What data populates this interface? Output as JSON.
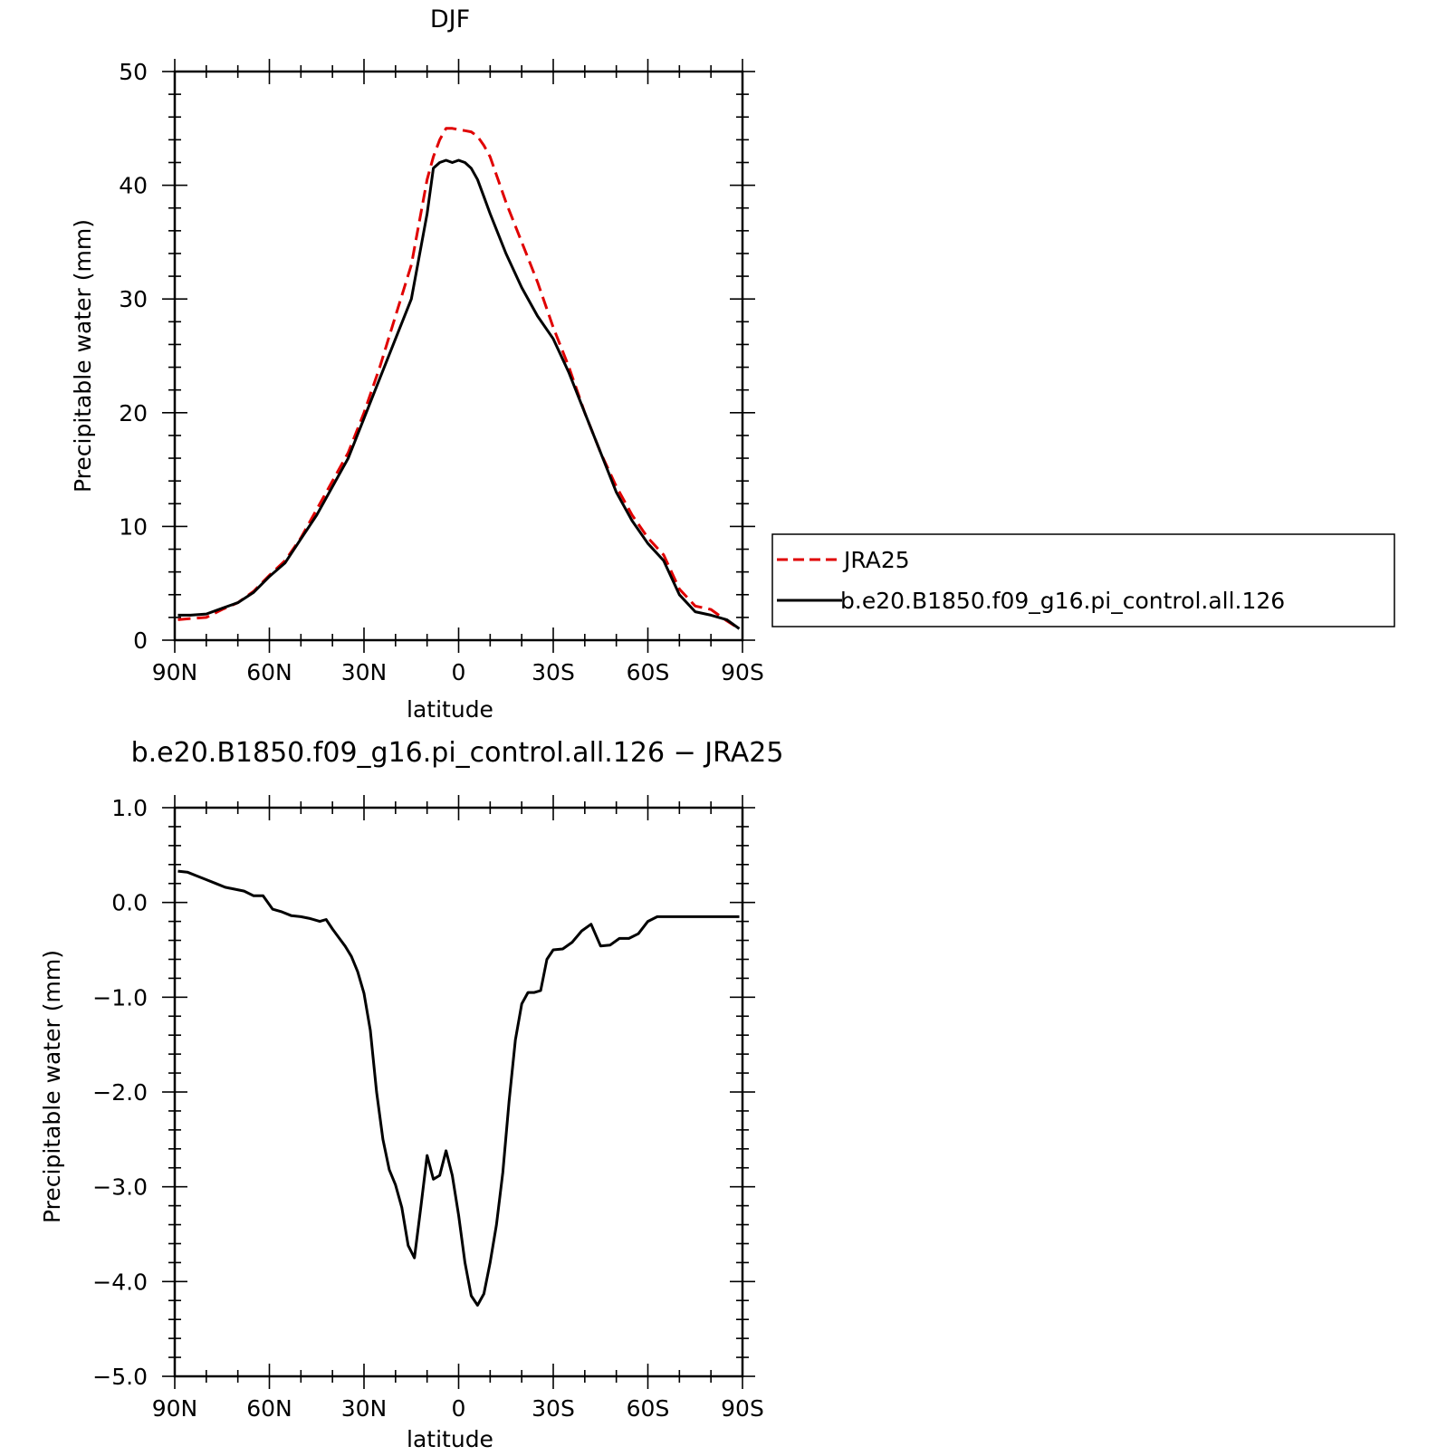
{
  "chart_data": [
    {
      "type": "line",
      "title": "DJF",
      "xlabel": "latitude",
      "ylabel": "Precipitable water (mm)",
      "xlim": [
        90,
        -90
      ],
      "ylim": [
        0,
        50
      ],
      "x_ticks": [
        90,
        60,
        30,
        0,
        -30,
        -60,
        -90
      ],
      "x_tick_labels": [
        "90N",
        "60N",
        "30N",
        "0",
        "30S",
        "60S",
        "90S"
      ],
      "y_ticks": [
        0,
        10,
        20,
        30,
        40,
        50
      ],
      "y_tick_labels": [
        "0",
        "10",
        "20",
        "30",
        "40",
        "50"
      ],
      "grid": false,
      "legend_position": "right",
      "series": [
        {
          "name": "JRA25",
          "color": "#e00000",
          "dash": "dashed",
          "x": [
            89,
            85,
            80,
            75,
            70,
            65,
            60,
            55,
            50,
            45,
            40,
            35,
            30,
            25,
            20,
            15,
            10,
            8,
            6,
            4,
            2,
            0,
            -2,
            -4,
            -6,
            -8,
            -10,
            -15,
            -20,
            -25,
            -30,
            -35,
            -40,
            -45,
            -50,
            -55,
            -60,
            -65,
            -70,
            -75,
            -80,
            -85,
            -89
          ],
          "y": [
            1.8,
            1.9,
            2.0,
            2.7,
            3.3,
            4.3,
            5.7,
            7.0,
            9.0,
            11.5,
            14.0,
            16.5,
            20.0,
            24.0,
            28.5,
            33.0,
            40.5,
            42.5,
            44.0,
            45.0,
            45.0,
            44.9,
            44.8,
            44.7,
            44.3,
            43.5,
            42.5,
            38.5,
            35.0,
            31.5,
            27.5,
            24.0,
            20.0,
            16.5,
            13.5,
            11.0,
            9.0,
            7.5,
            4.5,
            3.0,
            2.7,
            1.7,
            1.0
          ]
        },
        {
          "name": "b.e20.B1850.f09_g16.pi_control.all.126",
          "color": "#000000",
          "dash": "solid",
          "x": [
            89,
            85,
            80,
            75,
            70,
            65,
            60,
            55,
            50,
            45,
            40,
            35,
            30,
            25,
            20,
            15,
            10,
            8,
            6,
            4,
            2,
            0,
            -2,
            -4,
            -6,
            -8,
            -10,
            -15,
            -20,
            -25,
            -30,
            -35,
            -40,
            -45,
            -50,
            -55,
            -60,
            -65,
            -70,
            -75,
            -80,
            -85,
            -89
          ],
          "y": [
            2.2,
            2.2,
            2.3,
            2.8,
            3.3,
            4.2,
            5.6,
            6.8,
            8.9,
            11.0,
            13.5,
            16.0,
            19.5,
            23.0,
            26.5,
            30.0,
            37.5,
            41.5,
            42.0,
            42.2,
            42.0,
            42.2,
            42.0,
            41.5,
            40.5,
            39.0,
            37.5,
            34.0,
            31.0,
            28.5,
            26.5,
            23.5,
            20.0,
            16.5,
            13.0,
            10.5,
            8.5,
            7.0,
            4.0,
            2.5,
            2.2,
            1.8,
            1.0
          ]
        }
      ]
    },
    {
      "type": "line",
      "title": "b.e20.B1850.f09_g16.pi_control.all.126 − JRA25",
      "xlabel": "latitude",
      "ylabel": "Precipitable water (mm)",
      "xlim": [
        90,
        -90
      ],
      "ylim": [
        -5.0,
        1.0
      ],
      "x_ticks": [
        90,
        60,
        30,
        0,
        -30,
        -60,
        -90
      ],
      "x_tick_labels": [
        "90N",
        "60N",
        "30N",
        "0",
        "30S",
        "60S",
        "90S"
      ],
      "y_ticks": [
        1.0,
        0.0,
        -1.0,
        -2.0,
        -3.0,
        -4.0,
        -5.0
      ],
      "y_tick_labels": [
        "1.0",
        "0.0",
        "−1.0",
        "−2.0",
        "−3.0",
        "−4.0",
        "−5.0"
      ],
      "grid": false,
      "series": [
        {
          "color": "#000000",
          "dash": "solid",
          "x": [
            89,
            86,
            83,
            80,
            77,
            74,
            71,
            68,
            65,
            62,
            59,
            56,
            53,
            50,
            47,
            44,
            42,
            40,
            38,
            36,
            34,
            32,
            30,
            28,
            26,
            24,
            22,
            20,
            18,
            16,
            14,
            12,
            10,
            8,
            6,
            4,
            2,
            0,
            -2,
            -4,
            -6,
            -8,
            -10,
            -12,
            -14,
            -16,
            -18,
            -20,
            -22,
            -24,
            -26,
            -28,
            -30,
            -33,
            -36,
            -39,
            -42,
            -45,
            -48,
            -51,
            -54,
            -57,
            -60,
            -63,
            -66,
            -69,
            -72,
            -75,
            -78,
            -81,
            -84,
            -87,
            -89
          ],
          "y": [
            0.33,
            0.32,
            0.28,
            0.24,
            0.2,
            0.16,
            0.14,
            0.12,
            0.07,
            0.07,
            -0.07,
            -0.1,
            -0.14,
            -0.15,
            -0.17,
            -0.2,
            -0.18,
            -0.28,
            -0.37,
            -0.46,
            -0.57,
            -0.73,
            -0.96,
            -1.35,
            -2.0,
            -2.5,
            -2.82,
            -2.98,
            -3.22,
            -3.62,
            -3.75,
            -3.22,
            -2.67,
            -2.92,
            -2.88,
            -2.62,
            -2.88,
            -3.3,
            -3.8,
            -4.15,
            -4.25,
            -4.13,
            -3.8,
            -3.4,
            -2.85,
            -2.1,
            -1.45,
            -1.07,
            -0.95,
            -0.95,
            -0.93,
            -0.6,
            -0.5,
            -0.49,
            -0.42,
            -0.3,
            -0.23,
            -0.46,
            -0.45,
            -0.38,
            -0.38,
            -0.33,
            -0.2,
            -0.15,
            -0.15,
            -0.15,
            -0.15,
            -0.15,
            -0.15,
            -0.15,
            -0.15,
            -0.15,
            -0.15
          ]
        }
      ]
    }
  ]
}
